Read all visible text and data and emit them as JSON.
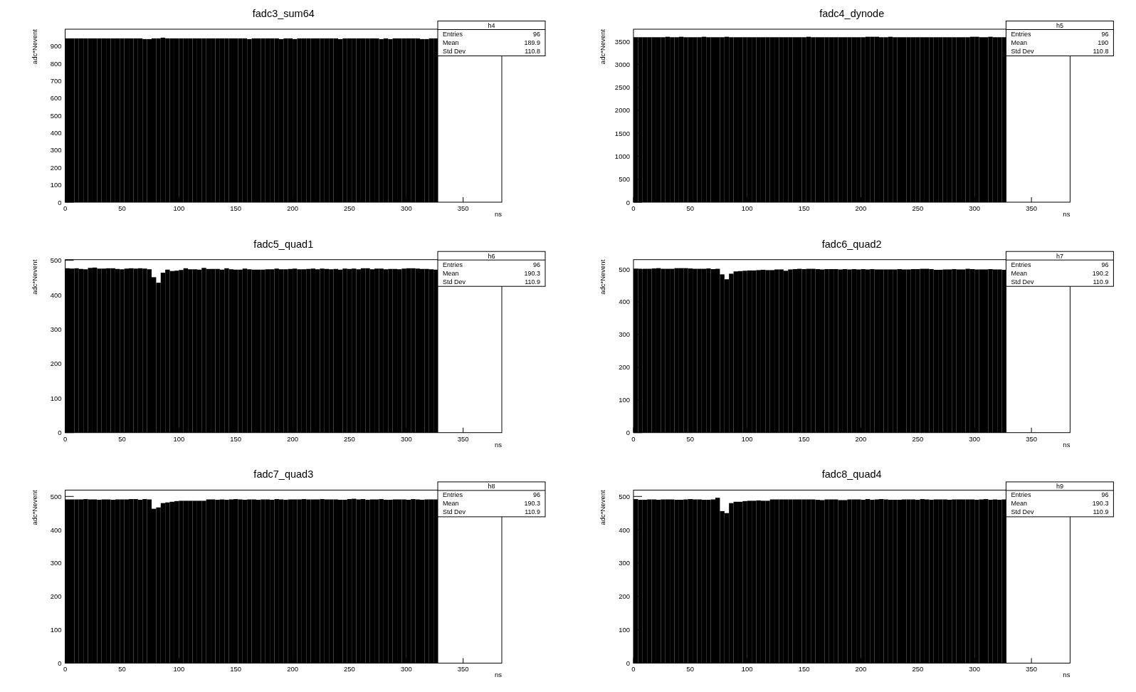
{
  "chart_data": [
    {
      "type": "histogram",
      "title": "fadc3_sum64",
      "xlabel": "ns",
      "ylabel": "adc*Nevent",
      "color": "#000000",
      "xlim": [
        0,
        384
      ],
      "ylim": [
        0,
        998
      ],
      "xticks": [
        0,
        50,
        100,
        150,
        200,
        250,
        300,
        350
      ],
      "yticks": [
        0,
        100,
        200,
        300,
        400,
        500,
        600,
        700,
        800,
        900
      ],
      "annotations": [
        "h4",
        "Entries",
        "96",
        "Mean",
        "189.9",
        "Std Dev",
        "110.8"
      ],
      "bins": [
        0,
        4,
        8,
        12,
        16,
        20,
        24,
        28,
        32,
        36,
        40,
        44,
        48,
        52,
        56,
        60,
        64,
        68,
        72,
        76,
        80,
        84,
        88,
        92,
        96,
        100,
        104,
        108,
        112,
        116,
        120,
        124,
        128,
        132,
        136,
        140,
        144,
        148,
        152,
        156,
        160,
        164,
        168,
        172,
        176,
        180,
        184,
        188,
        192,
        196,
        200,
        204,
        208,
        212,
        216,
        220,
        224,
        228,
        232,
        236,
        240,
        244,
        248,
        252,
        256,
        260,
        264,
        268,
        272,
        276,
        280,
        284,
        288,
        292,
        296,
        300,
        304,
        308,
        312,
        316,
        320,
        324,
        328
      ],
      "values": [
        945,
        945,
        945,
        945,
        945,
        945,
        945,
        945,
        945,
        945,
        945,
        945,
        945,
        945,
        945,
        945,
        945,
        941,
        941,
        945,
        945,
        949,
        945,
        945,
        945,
        945,
        945,
        945,
        945,
        945,
        945,
        945,
        945,
        945,
        945,
        945,
        945,
        945,
        945,
        945,
        941,
        945,
        945,
        945,
        945,
        945,
        945,
        941,
        945,
        945,
        941,
        945,
        945,
        945,
        945,
        945,
        945,
        945,
        945,
        945,
        941,
        945,
        945,
        945,
        945,
        945,
        945,
        945,
        945,
        941,
        945,
        941,
        945,
        945,
        945,
        945,
        945,
        945,
        941,
        941,
        945,
        945
      ]
    },
    {
      "type": "histogram",
      "title": "fadc4_dynode",
      "xlabel": "ns",
      "ylabel": "adc*Nevent",
      "color": "#000000",
      "xlim": [
        0,
        384
      ],
      "ylim": [
        0,
        3765
      ],
      "xticks": [
        0,
        50,
        100,
        150,
        200,
        250,
        300,
        350
      ],
      "yticks": [
        0,
        500,
        1000,
        1500,
        2000,
        2500,
        3000,
        3500
      ],
      "annotations": [
        "h5",
        "Entries",
        "96",
        "Mean",
        "190",
        "Std Dev",
        "110.8"
      ],
      "bins": [
        0,
        4,
        8,
        12,
        16,
        20,
        24,
        28,
        32,
        36,
        40,
        44,
        48,
        52,
        56,
        60,
        64,
        68,
        72,
        76,
        80,
        84,
        88,
        92,
        96,
        100,
        104,
        108,
        112,
        116,
        120,
        124,
        128,
        132,
        136,
        140,
        144,
        148,
        152,
        156,
        160,
        164,
        168,
        172,
        176,
        180,
        184,
        188,
        192,
        196,
        200,
        204,
        208,
        212,
        216,
        220,
        224,
        228,
        232,
        236,
        240,
        244,
        248,
        252,
        256,
        260,
        264,
        268,
        272,
        276,
        280,
        284,
        288,
        292,
        296,
        300,
        304,
        308,
        312,
        316,
        320,
        324,
        328
      ],
      "values": [
        3590,
        3590,
        3590,
        3590,
        3590,
        3590,
        3590,
        3600,
        3590,
        3590,
        3600,
        3590,
        3590,
        3590,
        3590,
        3600,
        3590,
        3590,
        3590,
        3590,
        3600,
        3590,
        3590,
        3590,
        3590,
        3590,
        3590,
        3590,
        3590,
        3590,
        3590,
        3590,
        3590,
        3590,
        3590,
        3590,
        3590,
        3590,
        3600,
        3590,
        3590,
        3590,
        3590,
        3590,
        3590,
        3590,
        3590,
        3590,
        3590,
        3590,
        3590,
        3600,
        3600,
        3600,
        3590,
        3590,
        3600,
        3590,
        3590,
        3590,
        3590,
        3590,
        3590,
        3590,
        3590,
        3590,
        3590,
        3590,
        3590,
        3590,
        3590,
        3590,
        3590,
        3590,
        3600,
        3600,
        3590,
        3590,
        3600,
        3590,
        3590,
        3590
      ]
    },
    {
      "type": "histogram",
      "title": "fadc5_quad1",
      "xlabel": "ns",
      "ylabel": "adc*Nevent",
      "color": "#000000",
      "xlim": [
        0,
        384
      ],
      "ylim": [
        0,
        502
      ],
      "xticks": [
        0,
        50,
        100,
        150,
        200,
        250,
        300,
        350
      ],
      "yticks": [
        0,
        100,
        200,
        300,
        400,
        500
      ],
      "annotations": [
        "h6",
        "Entries",
        "96",
        "Mean",
        "190.3",
        "Std Dev",
        "110.9"
      ],
      "bins": [
        0,
        4,
        8,
        12,
        16,
        20,
        24,
        28,
        32,
        36,
        40,
        44,
        48,
        52,
        56,
        60,
        64,
        68,
        72,
        76,
        80,
        84,
        88,
        92,
        96,
        100,
        104,
        108,
        112,
        116,
        120,
        124,
        128,
        132,
        136,
        140,
        144,
        148,
        152,
        156,
        160,
        164,
        168,
        172,
        176,
        180,
        184,
        188,
        192,
        196,
        200,
        204,
        208,
        212,
        216,
        220,
        224,
        228,
        232,
        236,
        240,
        244,
        248,
        252,
        256,
        260,
        264,
        268,
        272,
        276,
        280,
        284,
        288,
        292,
        296,
        300,
        304,
        308,
        312,
        316,
        320,
        324,
        328
      ],
      "values": [
        477,
        476,
        477,
        475,
        474,
        478,
        479,
        476,
        476,
        477,
        477,
        475,
        474,
        476,
        477,
        476,
        477,
        476,
        474,
        451,
        435,
        464,
        473,
        469,
        470,
        472,
        477,
        474,
        474,
        473,
        478,
        475,
        475,
        475,
        473,
        477,
        474,
        473,
        473,
        476,
        474,
        473,
        473,
        473,
        474,
        474,
        476,
        474,
        474,
        475,
        476,
        474,
        474,
        475,
        476,
        474,
        476,
        475,
        474,
        475,
        473,
        476,
        475,
        476,
        474,
        477,
        477,
        474,
        476,
        476,
        474,
        475,
        475,
        474,
        476,
        477,
        477,
        476,
        475,
        475,
        474,
        473
      ]
    },
    {
      "type": "histogram",
      "title": "fadc6_quad2",
      "xlabel": "ns",
      "ylabel": "adc*Nevent",
      "color": "#000000",
      "xlim": [
        0,
        384
      ],
      "ylim": [
        0,
        529
      ],
      "xticks": [
        0,
        50,
        100,
        150,
        200,
        250,
        300,
        350
      ],
      "yticks": [
        0,
        100,
        200,
        300,
        400,
        500
      ],
      "annotations": [
        "h7",
        "Entries",
        "96",
        "Mean",
        "190.2",
        "Std Dev",
        "110.9"
      ],
      "bins": [
        0,
        4,
        8,
        12,
        16,
        20,
        24,
        28,
        32,
        36,
        40,
        44,
        48,
        52,
        56,
        60,
        64,
        68,
        72,
        76,
        80,
        84,
        88,
        92,
        96,
        100,
        104,
        108,
        112,
        116,
        120,
        124,
        128,
        132,
        136,
        140,
        144,
        148,
        152,
        156,
        160,
        164,
        168,
        172,
        176,
        180,
        184,
        188,
        192,
        196,
        200,
        204,
        208,
        212,
        216,
        220,
        224,
        228,
        232,
        236,
        240,
        244,
        248,
        252,
        256,
        260,
        264,
        268,
        272,
        276,
        280,
        284,
        288,
        292,
        296,
        300,
        304,
        308,
        312,
        316,
        320,
        324,
        328
      ],
      "values": [
        501,
        500,
        501,
        501,
        502,
        503,
        501,
        501,
        501,
        503,
        503,
        503,
        502,
        501,
        501,
        501,
        502,
        500,
        501,
        484,
        469,
        486,
        493,
        494,
        495,
        496,
        496,
        497,
        498,
        497,
        497,
        499,
        499,
        495,
        499,
        500,
        501,
        500,
        501,
        501,
        500,
        499,
        500,
        500,
        500,
        499,
        500,
        499,
        500,
        499,
        500,
        499,
        500,
        499,
        499,
        499,
        499,
        499,
        500,
        499,
        499,
        500,
        500,
        501,
        501,
        500,
        498,
        498,
        499,
        499,
        500,
        499,
        499,
        501,
        500,
        499,
        499,
        499,
        500,
        499,
        499,
        498
      ]
    },
    {
      "type": "histogram",
      "title": "fadc7_quad3",
      "xlabel": "ns",
      "ylabel": "adc*Nevent",
      "color": "#000000",
      "xlim": [
        0,
        384
      ],
      "ylim": [
        0,
        519
      ],
      "xticks": [
        0,
        50,
        100,
        150,
        200,
        250,
        300,
        350
      ],
      "yticks": [
        0,
        100,
        200,
        300,
        400,
        500
      ],
      "annotations": [
        "h8",
        "Entries",
        "96",
        "Mean",
        "190.3",
        "Std Dev",
        "110.9"
      ],
      "bins": [
        0,
        4,
        8,
        12,
        16,
        20,
        24,
        28,
        32,
        36,
        40,
        44,
        48,
        52,
        56,
        60,
        64,
        68,
        72,
        76,
        80,
        84,
        88,
        92,
        96,
        100,
        104,
        108,
        112,
        116,
        120,
        124,
        128,
        132,
        136,
        140,
        144,
        148,
        152,
        156,
        160,
        164,
        168,
        172,
        176,
        180,
        184,
        188,
        192,
        196,
        200,
        204,
        208,
        212,
        216,
        220,
        224,
        228,
        232,
        236,
        240,
        244,
        248,
        252,
        256,
        260,
        264,
        268,
        272,
        276,
        280,
        284,
        288,
        292,
        296,
        300,
        304,
        308,
        312,
        316,
        320,
        324,
        328
      ],
      "values": [
        491,
        491,
        491,
        491,
        492,
        491,
        491,
        490,
        491,
        491,
        490,
        491,
        491,
        491,
        492,
        492,
        490,
        492,
        491,
        463,
        467,
        480,
        482,
        484,
        486,
        487,
        487,
        487,
        487,
        487,
        487,
        491,
        491,
        490,
        491,
        490,
        491,
        492,
        491,
        490,
        491,
        491,
        490,
        491,
        491,
        490,
        492,
        491,
        490,
        491,
        491,
        491,
        492,
        491,
        491,
        491,
        492,
        491,
        491,
        491,
        490,
        490,
        492,
        493,
        491,
        492,
        490,
        491,
        491,
        492,
        490,
        490,
        491,
        491,
        491,
        490,
        492,
        491,
        490,
        491,
        491,
        491
      ]
    },
    {
      "type": "histogram",
      "title": "fadc8_quad4",
      "xlabel": "ns",
      "ylabel": "adc*Nevent",
      "color": "#000000",
      "xlim": [
        0,
        384
      ],
      "ylim": [
        0,
        519
      ],
      "xticks": [
        0,
        50,
        100,
        150,
        200,
        250,
        300,
        350
      ],
      "yticks": [
        0,
        100,
        200,
        300,
        400,
        500
      ],
      "annotations": [
        "h9",
        "Entries",
        "96",
        "Mean",
        "190.3",
        "Std Dev",
        "110.9"
      ],
      "bins": [
        0,
        4,
        8,
        12,
        16,
        20,
        24,
        28,
        32,
        36,
        40,
        44,
        48,
        52,
        56,
        60,
        64,
        68,
        72,
        76,
        80,
        84,
        88,
        92,
        96,
        100,
        104,
        108,
        112,
        116,
        120,
        124,
        128,
        132,
        136,
        140,
        144,
        148,
        152,
        156,
        160,
        164,
        168,
        172,
        176,
        180,
        184,
        188,
        192,
        196,
        200,
        204,
        208,
        212,
        216,
        220,
        224,
        228,
        232,
        236,
        240,
        244,
        248,
        252,
        256,
        260,
        264,
        268,
        272,
        276,
        280,
        284,
        288,
        292,
        296,
        300,
        304,
        308,
        312,
        316,
        320,
        324,
        328
      ],
      "values": [
        492,
        490,
        490,
        491,
        491,
        490,
        491,
        491,
        491,
        490,
        490,
        491,
        492,
        491,
        491,
        490,
        490,
        491,
        496,
        456,
        450,
        480,
        484,
        484,
        486,
        487,
        487,
        488,
        487,
        487,
        491,
        491,
        491,
        491,
        491,
        491,
        491,
        491,
        491,
        491,
        490,
        489,
        491,
        491,
        491,
        489,
        489,
        491,
        491,
        491,
        490,
        492,
        490,
        491,
        492,
        491,
        490,
        490,
        490,
        491,
        491,
        491,
        490,
        492,
        491,
        490,
        491,
        491,
        491,
        490,
        491,
        491,
        491,
        491,
        491,
        490,
        491,
        492,
        490,
        491,
        490,
        491
      ]
    }
  ]
}
